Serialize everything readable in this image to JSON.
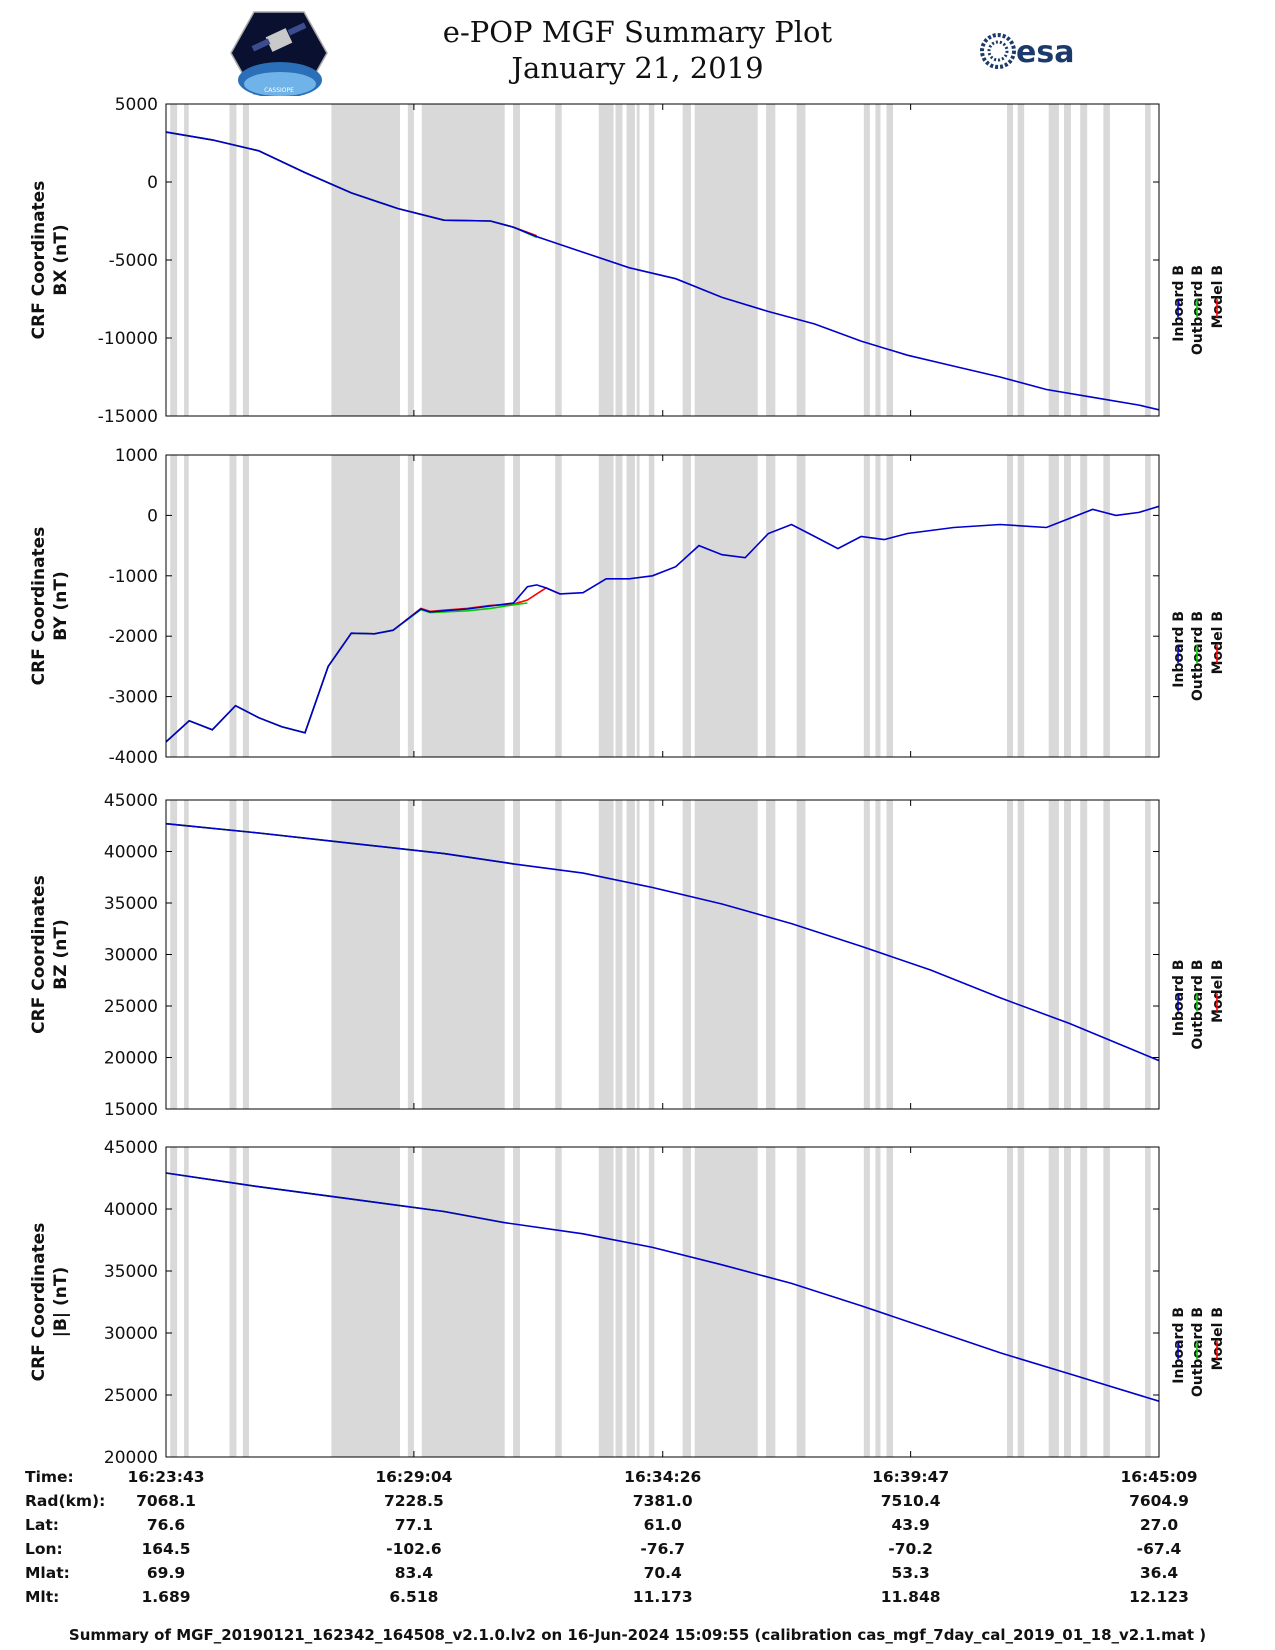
{
  "header": {
    "title_line1": "e-POP MGF Summary Plot",
    "title_line2": "January 21, 2019",
    "logo_left_text": "CASSIOPE",
    "logo_right_text": "esa"
  },
  "colors": {
    "inboard": "#0000cc",
    "outboard": "#00cc00",
    "model": "#ff0000",
    "shade": "#d9d9d9",
    "axis": "#000000"
  },
  "legend_labels": [
    "Inboard B",
    "Outboard B",
    "Model B"
  ],
  "time_axis": {
    "range_min": [
      0,
      21.43
    ],
    "tick_labels": [
      "16:23:43",
      "16:29:04",
      "16:34:26",
      "16:39:47",
      "16:45:09"
    ],
    "tick_min": [
      0,
      5.35,
      10.72,
      16.07,
      21.43
    ]
  },
  "gaps_min": [
    [
      0.09,
      0.24
    ],
    [
      0.39,
      0.49
    ],
    [
      1.37,
      1.52
    ],
    [
      1.66,
      1.79
    ],
    [
      3.57,
      5.05
    ],
    [
      5.22,
      5.35
    ],
    [
      5.52,
      7.31
    ],
    [
      7.49,
      7.64
    ],
    [
      8.4,
      8.54
    ],
    [
      9.34,
      9.66
    ],
    [
      9.7,
      9.85
    ],
    [
      9.94,
      10.12
    ],
    [
      10.16,
      10.22
    ],
    [
      10.42,
      10.54
    ],
    [
      11.15,
      11.33
    ],
    [
      11.41,
      12.77
    ],
    [
      12.95,
      13.15
    ],
    [
      13.61,
      13.8
    ],
    [
      15.06,
      15.19
    ],
    [
      15.31,
      15.42
    ],
    [
      15.55,
      15.69
    ],
    [
      18.15,
      18.28
    ],
    [
      18.38,
      18.52
    ],
    [
      19.05,
      19.27
    ],
    [
      19.38,
      19.53
    ],
    [
      19.73,
      19.88
    ],
    [
      20.23,
      20.37
    ],
    [
      21.13,
      21.25
    ]
  ],
  "chart_data": [
    {
      "type": "line",
      "title": "",
      "ylabel": "CRF Coordinates BX (nT)",
      "ylabel_lines": [
        "CRF Coordinates",
        "BX (nT)"
      ],
      "ylim": [
        -15000,
        5000
      ],
      "yticks": [
        5000,
        0,
        -5000,
        -10000,
        -15000
      ],
      "xlabel": "",
      "series": [
        {
          "name": "Inboard B",
          "x": [
            0,
            1.0,
            2.0,
            3.0,
            4.0,
            5.0,
            6.0,
            7.0,
            7.5,
            8.0,
            9.0,
            10.0,
            11.0,
            12.0,
            13.0,
            14.0,
            15.0,
            16.0,
            17.0,
            18.0,
            19.0,
            20.0,
            21.0,
            21.43
          ],
          "y": [
            3200,
            2700,
            2000,
            600,
            -700,
            -1700,
            -2450,
            -2500,
            -2900,
            -3500,
            -4500,
            -5500,
            -6200,
            -7400,
            -8300,
            -9100,
            -10200,
            -11100,
            -11800,
            -12500,
            -13300,
            -13800,
            -14300,
            -14600
          ]
        },
        {
          "name": "Outboard B",
          "x": [
            0,
            1.0,
            2.0,
            3.0,
            4.0,
            5.0,
            6.0,
            7.0,
            7.5,
            8.0
          ],
          "y": [
            3200,
            2700,
            2000,
            600,
            -700,
            -1700,
            -2450,
            -2500,
            -2900,
            -3550
          ]
        },
        {
          "name": "Model B",
          "x": [
            0,
            1.0,
            2.0,
            3.0,
            4.0,
            5.0,
            6.0,
            7.0,
            7.5,
            8.0
          ],
          "y": [
            3200,
            2700,
            2000,
            600,
            -700,
            -1700,
            -2450,
            -2500,
            -2900,
            -3450
          ]
        }
      ]
    },
    {
      "type": "line",
      "title": "",
      "ylabel": "CRF Coordinates BY (nT)",
      "ylabel_lines": [
        "CRF Coordinates",
        "BY (nT)"
      ],
      "ylim": [
        -4000,
        1000
      ],
      "yticks": [
        1000,
        0,
        -1000,
        -2000,
        -3000,
        -4000
      ],
      "xlabel": "",
      "series": [
        {
          "name": "Inboard B",
          "x": [
            0,
            0.5,
            1.0,
            1.5,
            2.0,
            2.5,
            3.0,
            3.5,
            4.0,
            4.5,
            4.9,
            5.5,
            5.7,
            6.0,
            6.5,
            7.0,
            7.5,
            7.8,
            8.0,
            8.2,
            8.5,
            9.0,
            9.5,
            10.0,
            10.5,
            11.0,
            11.5,
            12.0,
            12.5,
            13.0,
            13.5,
            14.0,
            14.5,
            15.0,
            15.5,
            16.0,
            16.5,
            17.0,
            18.0,
            19.0,
            19.5,
            20.0,
            20.5,
            21.0,
            21.43
          ],
          "y": [
            -3750,
            -3400,
            -3550,
            -3150,
            -3350,
            -3500,
            -3600,
            -2500,
            -1950,
            -1960,
            -1900,
            -1550,
            -1600,
            -1580,
            -1550,
            -1500,
            -1450,
            -1180,
            -1150,
            -1200,
            -1300,
            -1280,
            -1050,
            -1050,
            -1000,
            -850,
            -500,
            -650,
            -700,
            -300,
            -150,
            -350,
            -550,
            -350,
            -400,
            -300,
            -250,
            -200,
            -150,
            -200,
            -50,
            100,
            0,
            50,
            150
          ]
        },
        {
          "name": "Outboard B",
          "x": [
            0,
            0.5,
            1.0,
            1.5,
            2.0,
            2.5,
            3.0,
            3.5,
            4.0,
            4.5,
            4.9,
            5.5,
            5.7,
            6.0,
            6.5,
            7.0,
            7.5,
            7.8
          ],
          "y": [
            -3750,
            -3400,
            -3550,
            -3150,
            -3350,
            -3500,
            -3600,
            -2500,
            -1950,
            -1960,
            -1900,
            -1560,
            -1610,
            -1600,
            -1580,
            -1540,
            -1480,
            -1450
          ]
        },
        {
          "name": "Model B",
          "x": [
            0,
            0.5,
            1.0,
            1.5,
            2.0,
            2.5,
            3.0,
            3.5,
            4.0,
            4.5,
            4.9,
            5.5,
            5.7,
            6.0,
            6.5,
            7.0,
            7.5,
            7.8,
            8.0,
            8.2,
            8.5
          ],
          "y": [
            -3750,
            -3400,
            -3550,
            -3150,
            -3350,
            -3500,
            -3600,
            -2500,
            -1950,
            -1960,
            -1900,
            -1540,
            -1590,
            -1570,
            -1540,
            -1490,
            -1470,
            -1400,
            -1300,
            -1200,
            -1300
          ]
        }
      ]
    },
    {
      "type": "line",
      "title": "",
      "ylabel": "CRF Coordinates BZ (nT)",
      "ylabel_lines": [
        "CRF Coordinates",
        "BZ (nT)"
      ],
      "ylim": [
        15000,
        45000
      ],
      "yticks": [
        45000,
        40000,
        35000,
        30000,
        25000,
        20000,
        15000
      ],
      "xlabel": "",
      "series": [
        {
          "name": "Inboard B",
          "x": [
            0,
            2,
            4,
            6,
            7.5,
            9,
            10.5,
            12,
            13.5,
            15,
            16.5,
            18,
            19.5,
            21.43
          ],
          "y": [
            42700,
            41800,
            40800,
            39800,
            38800,
            37900,
            36500,
            34900,
            33000,
            30800,
            28500,
            25800,
            23300,
            19700
          ]
        },
        {
          "name": "Outboard B",
          "x": [
            0,
            2,
            4,
            6,
            7.5
          ],
          "y": [
            42700,
            41800,
            40800,
            39800,
            38800
          ]
        },
        {
          "name": "Model B",
          "x": [
            0,
            2,
            4,
            6,
            7.5
          ],
          "y": [
            42700,
            41800,
            40800,
            39800,
            38800
          ]
        }
      ]
    },
    {
      "type": "line",
      "title": "",
      "ylabel": "CRF Coordinates |B| (nT)",
      "ylabel_lines": [
        "CRF Coordinates",
        "|B| (nT)"
      ],
      "ylim": [
        20000,
        45000
      ],
      "yticks": [
        45000,
        40000,
        35000,
        30000,
        25000,
        20000
      ],
      "xlabel": "",
      "series": [
        {
          "name": "Inboard B",
          "x": [
            0,
            2,
            4,
            6,
            7.3,
            9,
            10.5,
            12,
            13.5,
            15,
            16.5,
            18,
            19.5,
            21.43
          ],
          "y": [
            42900,
            41800,
            40800,
            39800,
            38900,
            38000,
            36900,
            35500,
            34000,
            32200,
            30300,
            28400,
            26700,
            24500
          ]
        },
        {
          "name": "Outboard B",
          "x": [
            0,
            2,
            4,
            6,
            7.3
          ],
          "y": [
            42900,
            41800,
            40800,
            39800,
            38900
          ]
        },
        {
          "name": "Model B",
          "x": [
            0,
            2,
            4,
            6,
            7.3
          ],
          "y": [
            42900,
            41800,
            40800,
            39800,
            38900
          ]
        }
      ]
    }
  ],
  "ephemeris": {
    "labels": [
      "Time:",
      "Rad(km):",
      "Lat:",
      "Lon:",
      "Mlat:",
      "Mlt:"
    ],
    "columns": [
      [
        "16:23:43",
        "7068.1",
        "76.6",
        "164.5",
        "69.9",
        "1.689"
      ],
      [
        "16:29:04",
        "7228.5",
        "77.1",
        "-102.6",
        "83.4",
        "6.518"
      ],
      [
        "16:34:26",
        "7381.0",
        "61.0",
        "-76.7",
        "70.4",
        "11.173"
      ],
      [
        "16:39:47",
        "7510.4",
        "43.9",
        "-70.2",
        "53.3",
        "11.848"
      ],
      [
        "16:45:09",
        "7604.9",
        "27.0",
        "-67.4",
        "36.4",
        "12.123"
      ]
    ]
  },
  "footer": "Summary of MGF_20190121_162342_164508_v2.1.0.lv2 on 16-Jun-2024 15:09:55 (calibration cas_mgf_7day_cal_2019_01_18_v2.1.mat )"
}
